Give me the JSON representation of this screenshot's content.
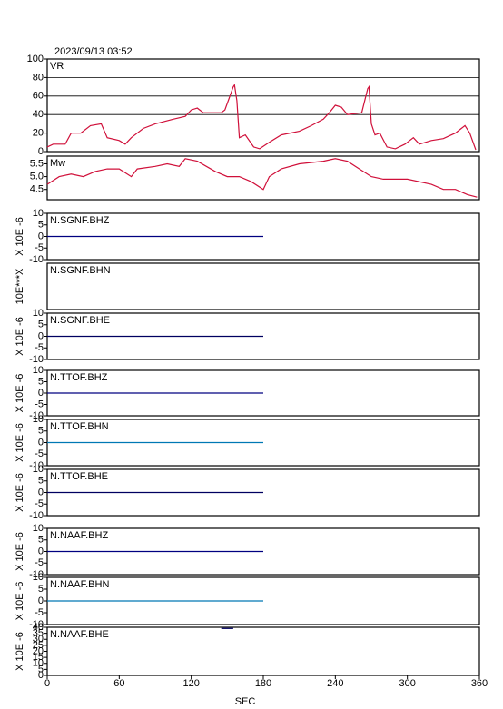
{
  "chart_data": [
    {
      "type": "line",
      "title": "2023/09/13 03:52",
      "label": "VR",
      "color": "#d0103a",
      "grid": true,
      "xlim": [
        0,
        360
      ],
      "ylim": [
        0,
        100
      ],
      "yticks": [
        0,
        20,
        40,
        60,
        80,
        100
      ],
      "x": [
        0,
        5,
        15,
        20,
        28,
        36,
        45,
        50,
        60,
        65,
        70,
        80,
        90,
        105,
        115,
        120,
        125,
        130,
        145,
        148,
        155,
        156,
        158,
        160,
        165,
        172,
        177,
        185,
        195,
        210,
        220,
        230,
        235,
        240,
        245,
        250,
        262,
        267,
        268,
        270,
        273,
        277,
        283,
        290,
        298,
        305,
        310,
        320,
        330,
        340,
        348,
        352,
        357
      ],
      "values": [
        5,
        8,
        8,
        20,
        20,
        28,
        30,
        15,
        12,
        8,
        15,
        25,
        30,
        35,
        38,
        45,
        47,
        42,
        42,
        45,
        70,
        72,
        55,
        15,
        18,
        5,
        3,
        10,
        18,
        22,
        28,
        35,
        42,
        50,
        48,
        40,
        42,
        68,
        70,
        30,
        18,
        20,
        5,
        3,
        8,
        15,
        8,
        12,
        14,
        20,
        28,
        20,
        2
      ]
    },
    {
      "type": "line",
      "label": "Mw",
      "color": "#d0103a",
      "xlim": [
        0,
        360
      ],
      "ylim": [
        4.1,
        5.8
      ],
      "yticks": [
        4.5,
        {
          "value": 5,
          "label": "5.0"
        },
        5.5
      ],
      "x": [
        0,
        10,
        20,
        30,
        40,
        50,
        60,
        70,
        75,
        90,
        100,
        110,
        115,
        125,
        140,
        150,
        160,
        170,
        180,
        185,
        195,
        210,
        230,
        240,
        250,
        260,
        270,
        280,
        300,
        320,
        330,
        340,
        350,
        358
      ],
      "values": [
        4.7,
        5.0,
        5.1,
        5.0,
        5.2,
        5.3,
        5.3,
        5.0,
        5.3,
        5.4,
        5.5,
        5.4,
        5.7,
        5.6,
        5.2,
        5.0,
        5.0,
        4.8,
        4.5,
        5.0,
        5.3,
        5.5,
        5.6,
        5.7,
        5.6,
        5.3,
        5.0,
        4.9,
        4.9,
        4.7,
        4.5,
        4.5,
        4.3,
        4.2
      ]
    },
    {
      "type": "line",
      "label": "N.SGNF.BHZ",
      "ylabel": "X 10E -6",
      "color": "#000080",
      "xlim": [
        0,
        360
      ],
      "ylim": [
        -10,
        10
      ],
      "yticks": [
        -10,
        -5,
        0,
        5,
        10
      ],
      "x": [
        0,
        180
      ],
      "values": [
        0,
        0
      ]
    },
    {
      "type": "line",
      "label": "N.SGNF.BHN",
      "ylabel": "10E***X",
      "color": "#0078b4",
      "xlim": [
        0,
        360
      ],
      "ylim": [
        -10,
        10
      ]
    },
    {
      "type": "line",
      "label": "N.SGNF.BHE",
      "ylabel": "X 10E -6",
      "color": "#000060",
      "xlim": [
        0,
        360
      ],
      "ylim": [
        -10,
        10
      ],
      "yticks": [
        -10,
        -5,
        0,
        5,
        10
      ],
      "x": [
        0,
        180
      ],
      "values": [
        0,
        0
      ]
    },
    {
      "type": "line",
      "label": "N.TTOF.BHZ",
      "ylabel": "X 10E -6",
      "color": "#000080",
      "xlim": [
        0,
        360
      ],
      "ylim": [
        -10,
        10
      ],
      "yticks": [
        -10,
        -5,
        0,
        5,
        10
      ],
      "x": [
        0,
        180
      ],
      "values": [
        0,
        0
      ]
    },
    {
      "type": "line",
      "label": "N.TTOF.BHN",
      "ylabel": "X 10E -6",
      "color": "#0078b4",
      "xlim": [
        0,
        360
      ],
      "ylim": [
        -10,
        10
      ],
      "yticks": [
        -10,
        -5,
        0,
        5,
        10
      ],
      "x": [
        0,
        180
      ],
      "values": [
        0,
        0
      ]
    },
    {
      "type": "line",
      "label": "N.TTOF.BHE",
      "ylabel": "X 10E -6",
      "color": "#000060",
      "xlim": [
        0,
        360
      ],
      "ylim": [
        -10,
        10
      ],
      "yticks": [
        -10,
        -5,
        0,
        5,
        10
      ],
      "x": [
        0,
        180
      ],
      "values": [
        0,
        0
      ]
    },
    {
      "type": "line",
      "label": "N.NAAF.BHZ",
      "ylabel": "X 10E -6",
      "color": "#000080",
      "xlim": [
        0,
        360
      ],
      "ylim": [
        -10,
        10
      ],
      "yticks": [
        -10,
        -5,
        0,
        5,
        10
      ],
      "x": [
        0,
        180
      ],
      "values": [
        0,
        0
      ]
    },
    {
      "type": "line",
      "label": "N.NAAF.BHN",
      "ylabel": "X 10E -6",
      "color": "#0078b4",
      "xlim": [
        0,
        360
      ],
      "ylim": [
        -10,
        10
      ],
      "yticks": [
        -10,
        -5,
        0,
        5,
        10
      ],
      "x": [
        0,
        180
      ],
      "values": [
        0,
        0
      ]
    },
    {
      "type": "line",
      "label": "N.NAAF.BHE",
      "ylabel": "X 10E -6",
      "color": "#000060",
      "xlim": [
        0,
        360
      ],
      "ylim": [
        0,
        40
      ],
      "yticks": [
        0,
        5,
        10,
        15,
        20,
        25,
        30,
        35,
        40
      ],
      "x": [
        145,
        155
      ],
      "values": [
        39,
        39
      ],
      "xticks": [
        0,
        60,
        120,
        180,
        240,
        300,
        360
      ],
      "xlabel": "SEC"
    }
  ]
}
